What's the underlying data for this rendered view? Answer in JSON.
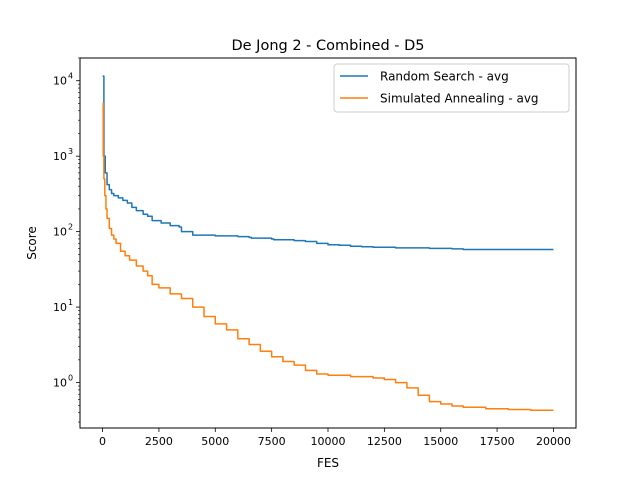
{
  "chart_data": {
    "type": "line",
    "title": "De Jong 2 - Combined - D5",
    "xlabel": "FES",
    "ylabel": "Score",
    "y_scale": "log",
    "xlim": [
      -1000,
      21000
    ],
    "ylim": [
      0.25,
      20000
    ],
    "x_ticks": [
      0,
      2500,
      5000,
      7500,
      10000,
      12500,
      15000,
      17500,
      20000
    ],
    "x_tick_labels": [
      "0",
      "2500",
      "5000",
      "7500",
      "10000",
      "12500",
      "15000",
      "17500",
      "20000"
    ],
    "y_ticks": [
      1,
      10,
      100,
      1000,
      10000
    ],
    "y_tick_labels": [
      "10",
      "10",
      "10",
      "10",
      "10"
    ],
    "y_tick_exponents": [
      "0",
      "1",
      "2",
      "3",
      "4"
    ],
    "grid": false,
    "legend_position": "upper-right",
    "series": [
      {
        "name": "Random Search - avg",
        "color": "#1f77b4",
        "style": "step",
        "x": [
          0,
          60,
          120,
          200,
          300,
          400,
          500,
          700,
          900,
          1100,
          1300,
          1500,
          1800,
          2000,
          2200,
          2600,
          3000,
          3400,
          3500,
          4000,
          5000,
          5500,
          6000,
          6500,
          6600,
          7000,
          7500,
          7600,
          8000,
          8500,
          9000,
          9500,
          10000,
          10500,
          11000,
          11500,
          12000,
          12500,
          13000,
          13500,
          14000,
          14500,
          15000,
          15500,
          16000,
          17000,
          18000,
          19000,
          20000
        ],
        "y": [
          11500,
          1000,
          600,
          420,
          360,
          320,
          300,
          280,
          260,
          240,
          210,
          190,
          170,
          160,
          140,
          130,
          120,
          115,
          100,
          90,
          88,
          88,
          86,
          84,
          82,
          82,
          80,
          78,
          78,
          76,
          74,
          70,
          67,
          66,
          64,
          63,
          62,
          62,
          61,
          61,
          61,
          60,
          60,
          59,
          58,
          58,
          58,
          58,
          58
        ]
      },
      {
        "name": "Simulated Annealing - avg",
        "color": "#ff7f0e",
        "style": "step",
        "x": [
          0,
          30,
          60,
          100,
          150,
          200,
          300,
          400,
          500,
          600,
          800,
          1000,
          1200,
          1500,
          1800,
          2000,
          2200,
          2500,
          3000,
          3500,
          4000,
          4500,
          5000,
          5500,
          6000,
          6500,
          7000,
          7500,
          8000,
          8500,
          9000,
          9500,
          10000,
          11000,
          12000,
          12500,
          13000,
          13500,
          14000,
          14500,
          15000,
          15500,
          16000,
          17000,
          18000,
          19000,
          20000
        ],
        "y": [
          5000,
          1000,
          500,
          300,
          200,
          150,
          110,
          90,
          80,
          70,
          55,
          48,
          42,
          35,
          30,
          26,
          20,
          18,
          15,
          13,
          10,
          7.5,
          6,
          5,
          3.8,
          3.2,
          2.6,
          2.2,
          1.9,
          1.7,
          1.45,
          1.3,
          1.25,
          1.2,
          1.15,
          1.1,
          1.0,
          0.85,
          0.68,
          0.56,
          0.52,
          0.49,
          0.47,
          0.45,
          0.44,
          0.43,
          0.43
        ]
      }
    ]
  }
}
